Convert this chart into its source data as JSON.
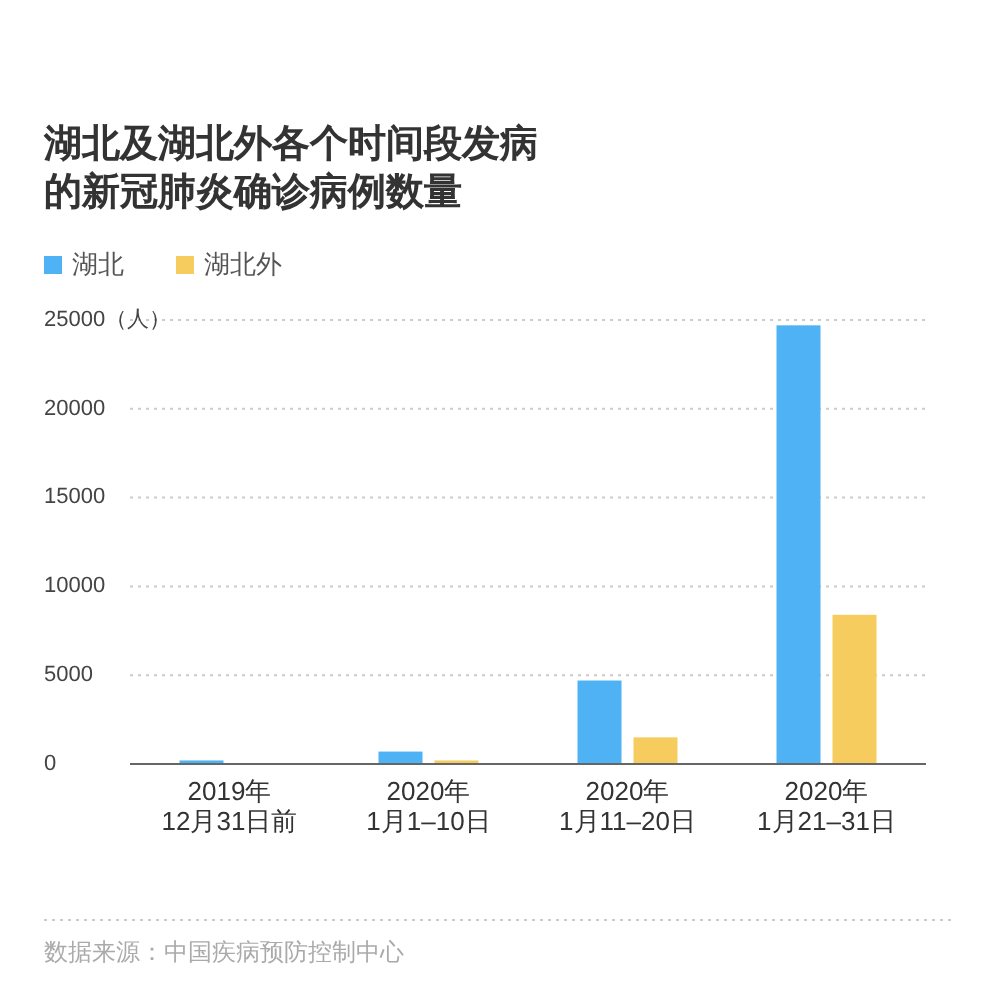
{
  "chart_data": {
    "type": "bar",
    "title": "湖北及湖北外各个时间段发病的新冠肺炎确诊病例数量",
    "categories": [
      "2019年\n12月31日前",
      "2020年\n1月1–10日",
      "2020年\n1月11–20日",
      "2020年\n1月21–31日"
    ],
    "series": [
      {
        "name": "湖北",
        "color": "#4fb2f5",
        "values": [
          200,
          700,
          4700,
          24700
        ]
      },
      {
        "name": "湖北外",
        "color": "#f7cc5e",
        "values": [
          0,
          200,
          1500,
          8400
        ]
      }
    ],
    "ylim": [
      0,
      25000
    ],
    "yticks": [
      0,
      5000,
      10000,
      15000,
      20000,
      {
        "value": 25000,
        "label": "25000（人）"
      }
    ],
    "grid": "y",
    "legend": "top left",
    "annotations": [
      "数据来源：中国疾病预防控制中心"
    ]
  }
}
